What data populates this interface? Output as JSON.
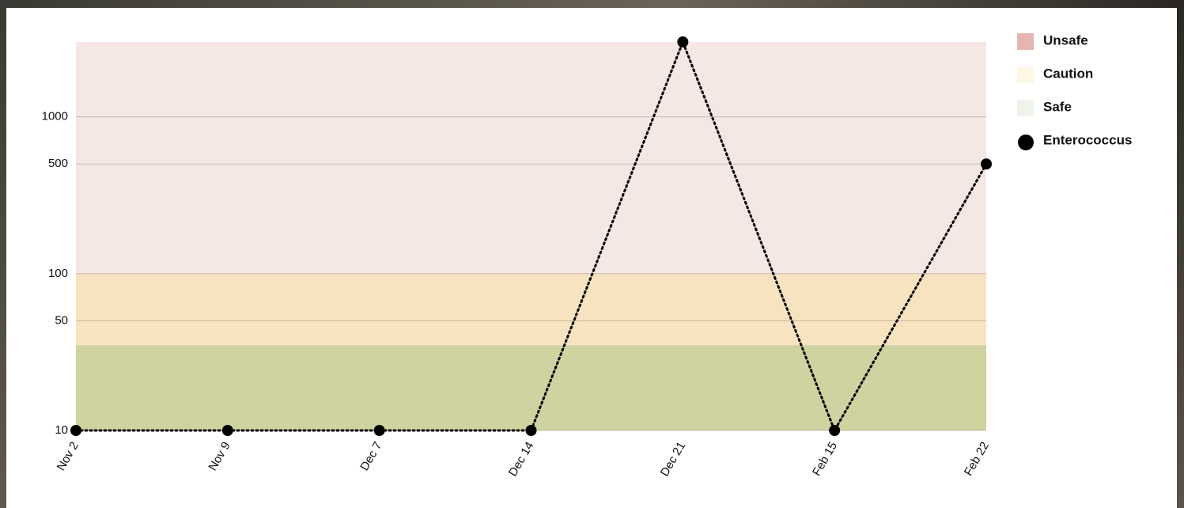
{
  "chart_data": {
    "type": "line",
    "categories": [
      "Nov 2",
      "Nov 9",
      "Dec 7",
      "Dec 14",
      "Dec 21",
      "Feb 15",
      "Feb 22"
    ],
    "series": [
      {
        "name": "Enterococcus",
        "color": "#000000",
        "values": [
          10,
          10,
          10,
          10,
          3000,
          10,
          500
        ]
      }
    ],
    "bands": [
      {
        "name": "Unsafe",
        "min": 100,
        "fill": "#f5e7e4",
        "color": "#e6b5b1"
      },
      {
        "name": "Caution",
        "min": 35,
        "fill": "#f8e3c1",
        "color": "#fdf8e4"
      },
      {
        "name": "Safe",
        "fill": "#ced39f",
        "color": "#eef4ea"
      }
    ],
    "ylim": [
      10,
      3000
    ],
    "yticks": [
      10,
      50,
      100,
      500,
      1000
    ],
    "log_y": true,
    "grid": true,
    "legend": "right"
  }
}
